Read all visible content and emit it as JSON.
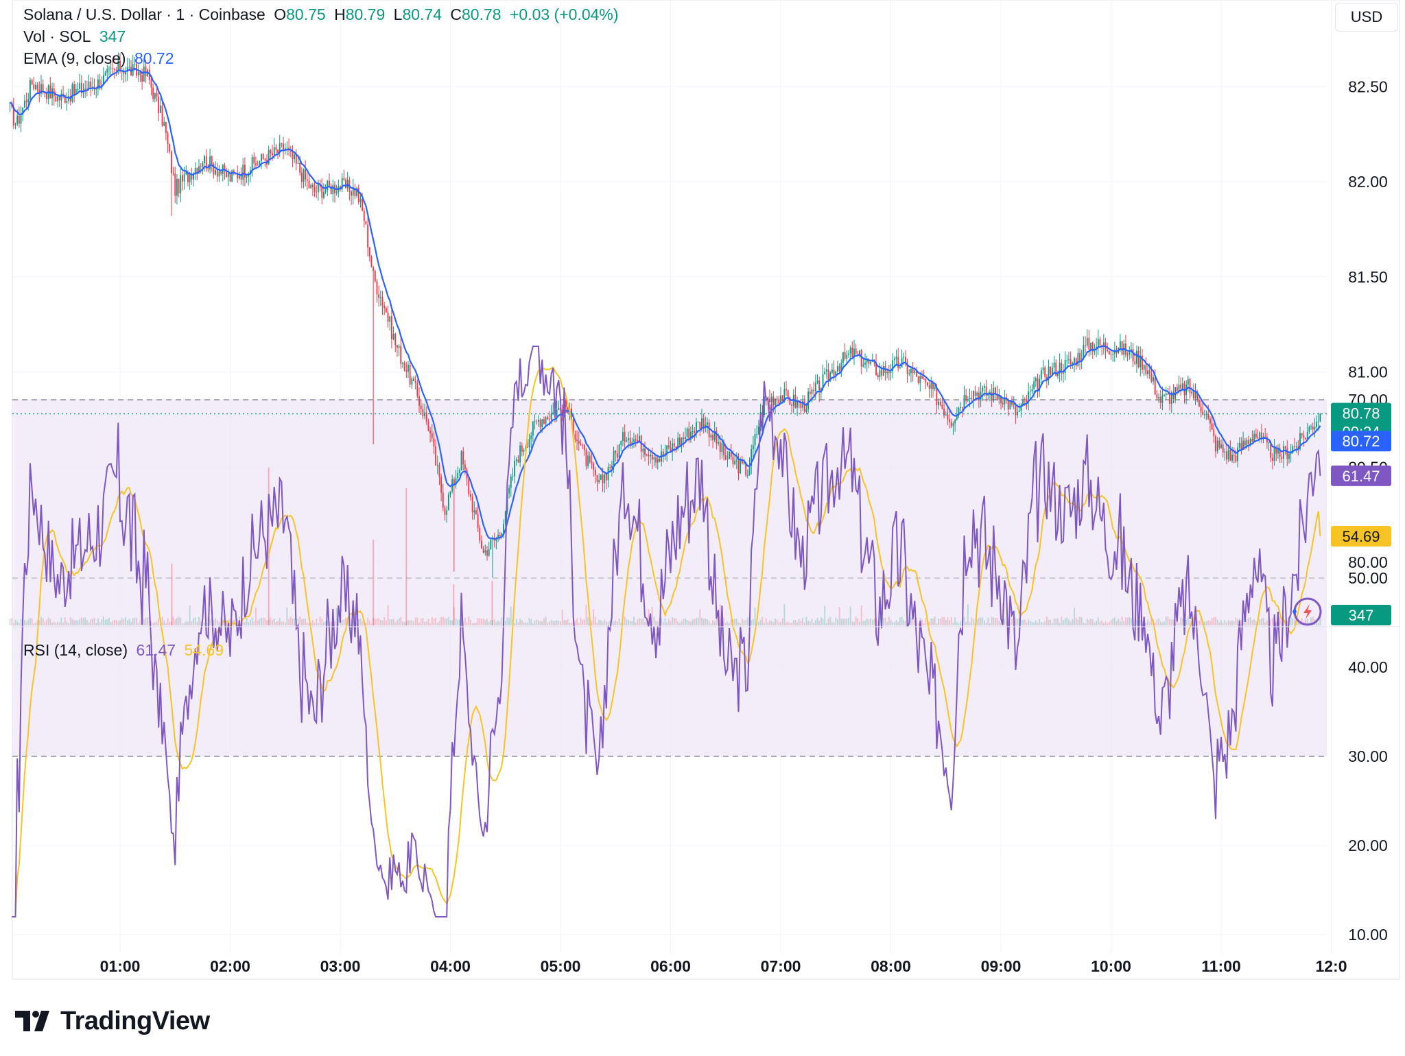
{
  "header": {
    "symbol": "Solana / U.S. Dollar · 1 · Coinbase",
    "open_label": "O",
    "open": "80.75",
    "high_label": "H",
    "high": "80.79",
    "low_label": "L",
    "low": "80.74",
    "close_label": "C",
    "close": "80.78",
    "change": "+0.03 (+0.04%)",
    "vol_label": "Vol · SOL",
    "vol_value": "347",
    "ema_label": "EMA (9, close)",
    "ema_value": "80.72",
    "rsi_label": "RSI (14, close)",
    "rsi_value": "61.47",
    "rsi_ma_value": "54.69"
  },
  "currency": "USD",
  "badges": {
    "last_price": "80.78",
    "countdown": "00:24",
    "ema": "80.72",
    "volume": "347",
    "rsi": "61.47",
    "rsi_ma": "54.69"
  },
  "branding": {
    "wordmark": "TradingView"
  },
  "colors": {
    "up": "#089981",
    "down": "#f23645",
    "ema": "#2962ff",
    "rsi": "#7e57c2",
    "rsi_ma": "#f7c325",
    "rsi_band": "#ede7f6"
  },
  "icons": {
    "alert": "lightning-bolt-icon",
    "logo": "tradingview-logo-icon"
  },
  "chart_data": [
    {
      "type": "candlestick",
      "title": "Solana / U.S. Dollar · 1 · Coinbase",
      "x_tick_labels": [
        "01:00",
        "02:00",
        "03:00",
        "04:00",
        "05:00",
        "06:00",
        "07:00",
        "08:00",
        "09:00",
        "10:00",
        "11:00",
        "12:0"
      ],
      "y_tick_labels": [
        "82.50",
        "82.00",
        "81.50",
        "81.00",
        "80.50",
        "80.00"
      ],
      "ylim": [
        79.65,
        82.72
      ],
      "grid": true,
      "last_price": 80.78,
      "ema_period": 9,
      "series_path": [
        [
          0.0,
          82.38
        ],
        [
          0.06,
          82.3
        ],
        [
          0.2,
          82.52
        ],
        [
          0.45,
          82.44
        ],
        [
          0.8,
          82.52
        ],
        [
          1.0,
          82.6
        ],
        [
          1.25,
          82.56
        ],
        [
          1.4,
          82.3
        ],
        [
          1.5,
          81.96
        ],
        [
          1.75,
          82.12
        ],
        [
          2.0,
          82.02
        ],
        [
          2.3,
          82.12
        ],
        [
          2.5,
          82.18
        ],
        [
          2.75,
          81.95
        ],
        [
          3.0,
          81.98
        ],
        [
          3.15,
          81.95
        ],
        [
          3.22,
          81.8
        ],
        [
          3.3,
          81.5
        ],
        [
          3.4,
          81.35
        ],
        [
          3.5,
          81.15
        ],
        [
          3.65,
          80.95
        ],
        [
          3.8,
          80.72
        ],
        [
          3.95,
          80.28
        ],
        [
          4.1,
          80.55
        ],
        [
          4.3,
          80.05
        ],
        [
          4.45,
          80.15
        ],
        [
          4.6,
          80.55
        ],
        [
          4.8,
          80.75
        ],
        [
          5.05,
          80.82
        ],
        [
          5.2,
          80.58
        ],
        [
          5.35,
          80.4
        ],
        [
          5.6,
          80.68
        ],
        [
          5.9,
          80.55
        ],
        [
          6.1,
          80.65
        ],
        [
          6.3,
          80.75
        ],
        [
          6.5,
          80.55
        ],
        [
          6.7,
          80.48
        ],
        [
          6.85,
          80.85
        ],
        [
          7.0,
          80.88
        ],
        [
          7.2,
          80.82
        ],
        [
          7.5,
          81.03
        ],
        [
          7.65,
          81.1
        ],
        [
          7.9,
          81.0
        ],
        [
          8.1,
          81.05
        ],
        [
          8.4,
          80.88
        ],
        [
          8.55,
          80.75
        ],
        [
          8.7,
          80.9
        ],
        [
          9.0,
          80.88
        ],
        [
          9.15,
          80.78
        ],
        [
          9.4,
          81.0
        ],
        [
          9.65,
          81.05
        ],
        [
          9.8,
          81.15
        ],
        [
          10.1,
          81.12
        ],
        [
          10.3,
          81.05
        ],
        [
          10.45,
          80.85
        ],
        [
          10.7,
          80.92
        ],
        [
          10.85,
          80.8
        ],
        [
          10.95,
          80.62
        ],
        [
          11.1,
          80.55
        ],
        [
          11.3,
          80.68
        ],
        [
          11.5,
          80.55
        ],
        [
          11.7,
          80.62
        ],
        [
          11.9,
          80.78
        ]
      ]
    },
    {
      "type": "bar",
      "title": "Vol · SOL",
      "last_value": 347
    },
    {
      "type": "line",
      "title": "RSI (14, close)",
      "y_tick_labels": [
        "70.00",
        "50.00",
        "40.00",
        "30.00",
        "20.00",
        "10.00"
      ],
      "ylim": [
        8,
        73
      ],
      "bands": [
        30,
        70
      ],
      "midline": 50,
      "series": [
        {
          "name": "RSI",
          "last_value": 61.47
        },
        {
          "name": "RSI-based MA",
          "last_value": 54.69
        }
      ]
    }
  ]
}
